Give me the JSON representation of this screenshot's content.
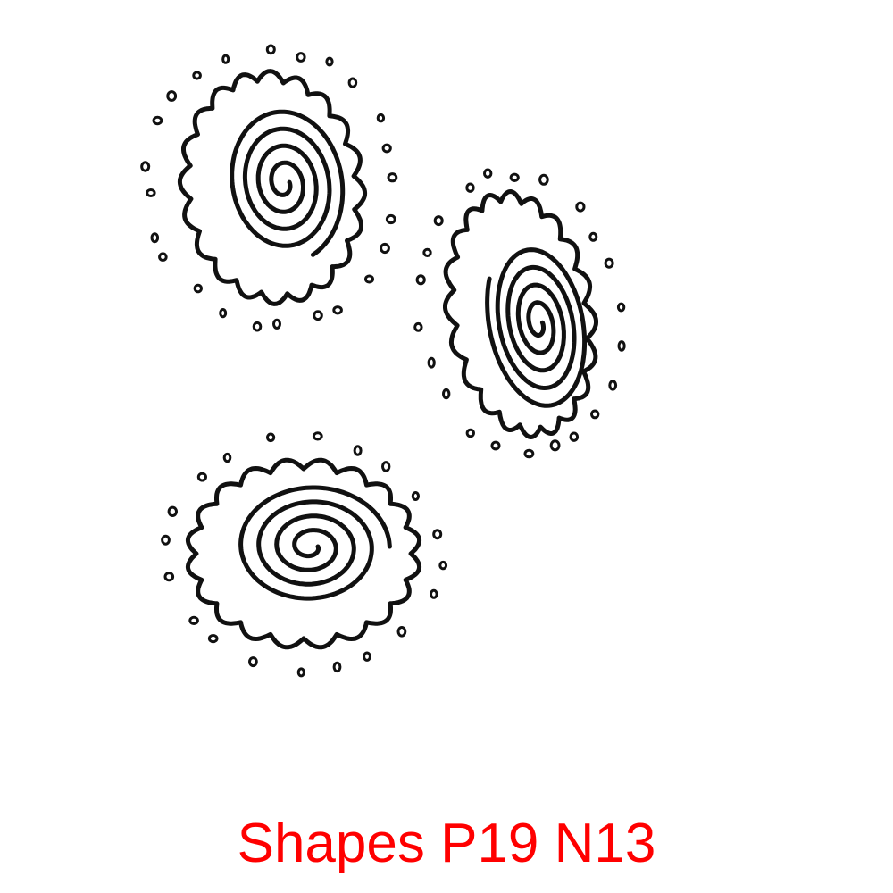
{
  "caption": "Shapes P19 N13",
  "colors": {
    "caption": "#ff0000",
    "ink": "#111111",
    "background": "#ffffff"
  },
  "motifs": [
    {
      "name": "spiral-flower-top-left"
    },
    {
      "name": "spiral-flower-right"
    },
    {
      "name": "spiral-flower-bottom"
    }
  ]
}
